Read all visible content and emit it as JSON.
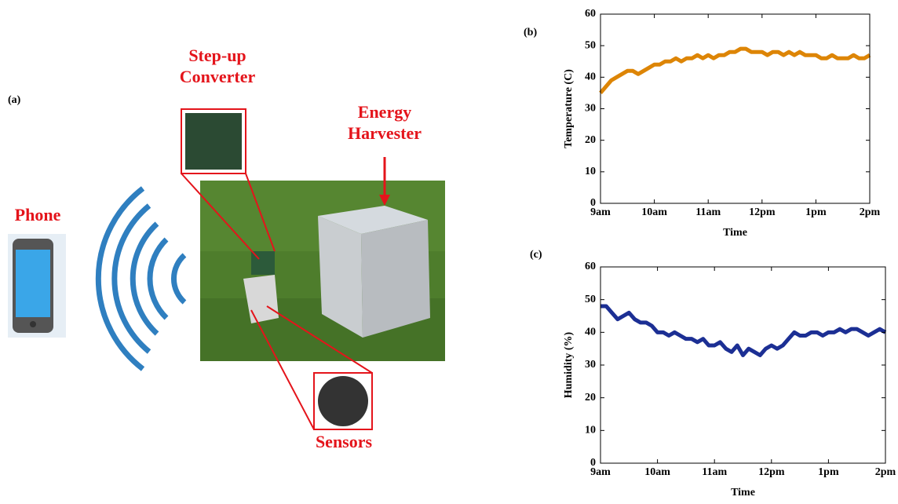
{
  "panel_a": {
    "panel_label": "(a)",
    "phone": "Phone",
    "converter": [
      "Step-up",
      "Converter"
    ],
    "harvester": [
      "Energy",
      "Harvester"
    ],
    "sensors": "Sensors"
  },
  "chart_data": [
    {
      "type": "line",
      "panel_label": "(b)",
      "x_label": "Time",
      "y_label": "Temperature (C)",
      "xlim": [
        9,
        14
      ],
      "ylim": [
        0,
        60
      ],
      "xticks": [
        {
          "value": 9,
          "label": "9am"
        },
        {
          "value": 10,
          "label": "10am"
        },
        {
          "value": 11,
          "label": "11am"
        },
        {
          "value": 12,
          "label": "12pm"
        },
        {
          "value": 13,
          "label": "1pm"
        },
        {
          "value": 14,
          "label": "2pm"
        }
      ],
      "yticks": [
        0,
        10,
        20,
        30,
        40,
        50,
        60
      ],
      "x": [
        9,
        9.1,
        9.2,
        9.3,
        9.4,
        9.5,
        9.6,
        9.7,
        9.8,
        9.9,
        10,
        10.1,
        10.2,
        10.3,
        10.4,
        10.5,
        10.6,
        10.7,
        10.8,
        10.9,
        11,
        11.1,
        11.2,
        11.3,
        11.4,
        11.5,
        11.6,
        11.7,
        11.8,
        11.9,
        12,
        12.1,
        12.2,
        12.3,
        12.4,
        12.5,
        12.6,
        12.7,
        12.8,
        12.9,
        13,
        13.1,
        13.2,
        13.3,
        13.4,
        13.5,
        13.6,
        13.7,
        13.8,
        13.9,
        14
      ],
      "series": [
        {
          "color": "#dd8506",
          "values": [
            35,
            37,
            39,
            40,
            41,
            42,
            42,
            41,
            42,
            43,
            44,
            44,
            45,
            45,
            46,
            45,
            46,
            46,
            47,
            46,
            47,
            46,
            47,
            47,
            48,
            48,
            49,
            49,
            48,
            48,
            48,
            47,
            48,
            48,
            47,
            48,
            47,
            48,
            47,
            47,
            47,
            46,
            46,
            47,
            46,
            46,
            46,
            47,
            46,
            46,
            47
          ]
        }
      ]
    },
    {
      "type": "line",
      "panel_label": "(c)",
      "x_label": "Time",
      "y_label": "Humidity (%)",
      "xlim": [
        9,
        14
      ],
      "ylim": [
        0,
        60
      ],
      "xticks": [
        {
          "value": 9,
          "label": "9am"
        },
        {
          "value": 10,
          "label": "10am"
        },
        {
          "value": 11,
          "label": "11am"
        },
        {
          "value": 12,
          "label": "12pm"
        },
        {
          "value": 13,
          "label": "1pm"
        },
        {
          "value": 14,
          "label": "2pm"
        }
      ],
      "yticks": [
        0,
        10,
        20,
        30,
        40,
        50,
        60
      ],
      "x": [
        9,
        9.1,
        9.2,
        9.3,
        9.4,
        9.5,
        9.6,
        9.7,
        9.8,
        9.9,
        10,
        10.1,
        10.2,
        10.3,
        10.4,
        10.5,
        10.6,
        10.7,
        10.8,
        10.9,
        11,
        11.1,
        11.2,
        11.3,
        11.4,
        11.5,
        11.6,
        11.7,
        11.8,
        11.9,
        12,
        12.1,
        12.2,
        12.3,
        12.4,
        12.5,
        12.6,
        12.7,
        12.8,
        12.9,
        13,
        13.1,
        13.2,
        13.3,
        13.4,
        13.5,
        13.6,
        13.7,
        13.8,
        13.9,
        14
      ],
      "series": [
        {
          "color": "#1c2f94",
          "values": [
            48,
            48,
            46,
            44,
            45,
            46,
            44,
            43,
            43,
            42,
            40,
            40,
            39,
            40,
            39,
            38,
            38,
            37,
            38,
            36,
            36,
            37,
            35,
            34,
            36,
            33,
            35,
            34,
            33,
            35,
            36,
            35,
            36,
            38,
            40,
            39,
            39,
            40,
            40,
            39,
            40,
            40,
            41,
            40,
            41,
            41,
            40,
            39,
            40,
            41,
            40
          ]
        }
      ]
    }
  ]
}
